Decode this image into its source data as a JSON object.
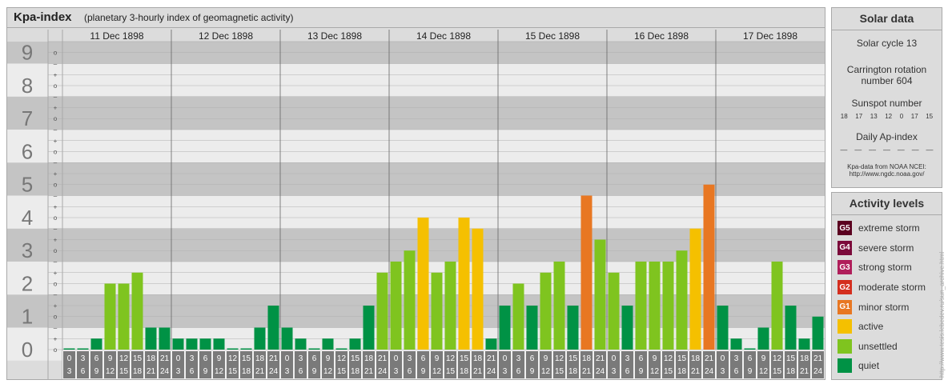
{
  "header": {
    "title": "Kpa-index",
    "subtitle": "(planetary 3-hourly index of geomagnetic activity)"
  },
  "chart_data": {
    "type": "bar",
    "days": [
      "11 Dec 1898",
      "12 Dec 1898",
      "13 Dec 1898",
      "14 Dec 1898",
      "15 Dec 1898",
      "16 Dec 1898",
      "17 Dec 1898"
    ],
    "kp_levels": [
      "0",
      "1",
      "2",
      "3",
      "4",
      "5",
      "6",
      "7",
      "8",
      "9"
    ],
    "sub_marks": [
      "+",
      "o",
      "–"
    ],
    "interval_start": [
      "0",
      "3",
      "6",
      "9",
      "12",
      "15",
      "18",
      "21"
    ],
    "interval_end": [
      "3",
      "6",
      "9",
      "12",
      "15",
      "18",
      "21",
      "24"
    ],
    "values": [
      [
        0,
        0,
        0.333,
        2.0,
        2.0,
        2.333,
        0.667,
        0.667
      ],
      [
        0.333,
        0.333,
        0.333,
        0.333,
        0,
        0,
        0.667,
        1.333
      ],
      [
        0.667,
        0.333,
        0,
        0.333,
        0,
        0.333,
        1.333,
        2.333
      ],
      [
        2.667,
        3.0,
        4.0,
        2.333,
        2.667,
        4.0,
        3.667,
        0.333
      ],
      [
        1.333,
        2.0,
        1.333,
        2.333,
        2.667,
        1.333,
        4.667,
        3.333
      ],
      [
        2.333,
        1.333,
        2.667,
        2.667,
        2.667,
        3.0,
        3.667,
        5.0
      ],
      [
        1.333,
        0.333,
        0,
        0.667,
        2.667,
        1.333,
        0.333,
        1.0
      ]
    ],
    "ylim": [
      0,
      9.333
    ],
    "grid": true
  },
  "solar": {
    "heading": "Solar data",
    "cycle": "Solar cycle 13",
    "carrington_line1": "Carrington rotation",
    "carrington_line2": "number 604",
    "sunspot_heading": "Sunspot number",
    "sunspot_values": [
      "18",
      "17",
      "13",
      "12",
      "0",
      "17",
      "15"
    ],
    "ap_heading": "Daily Ap-index",
    "ap_values": [
      "––",
      "––",
      "––",
      "––",
      "––",
      "––",
      "––"
    ],
    "source_line1": "Kpa-data from NOAA NCEI:",
    "source_line2": "http://www.ngdc.noaa.gov/"
  },
  "activity": {
    "heading": "Activity levels",
    "items": [
      {
        "badge": "G5",
        "label": "extreme storm",
        "color": "#5b0020"
      },
      {
        "badge": "G4",
        "label": "severe storm",
        "color": "#7b0a3a"
      },
      {
        "badge": "G3",
        "label": "strong storm",
        "color": "#b01e5a"
      },
      {
        "badge": "G2",
        "label": "moderate storm",
        "color": "#d42e1e"
      },
      {
        "badge": "G1",
        "label": "minor storm",
        "color": "#e87722"
      },
      {
        "badge": "",
        "label": "active",
        "color": "#f5c000"
      },
      {
        "badge": "",
        "label": "unsettled",
        "color": "#7fc41f"
      },
      {
        "badge": "",
        "label": "quiet",
        "color": "#009245"
      }
    ]
  },
  "watermark": "http://www.tesis.lebedev.ru/sun_archive.html"
}
